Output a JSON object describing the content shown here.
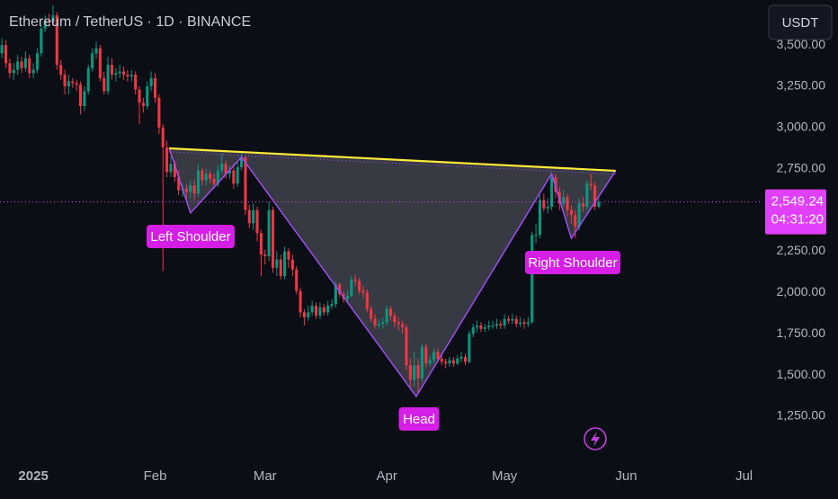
{
  "header": {
    "title": "Ethereum / TetherUS · 1D · BINANCE",
    "currency_button": "USDT"
  },
  "chart_data": {
    "type": "candlestick",
    "up_color": "#089981",
    "down_color": "#f23645",
    "x": [
      -8,
      -7,
      -6,
      -5,
      -4,
      -3,
      -2,
      -1,
      0,
      1,
      2,
      3,
      4,
      5,
      6,
      7,
      8,
      9,
      10,
      11,
      12,
      13,
      14,
      15,
      16,
      17,
      18,
      19,
      20,
      21,
      22,
      23,
      24,
      25,
      26,
      27,
      28,
      29,
      30,
      31,
      32,
      33,
      34,
      35,
      36,
      37,
      38,
      39,
      40,
      41,
      42,
      43,
      44,
      45,
      46,
      47,
      48,
      49,
      50,
      51,
      52,
      53,
      54,
      55,
      56,
      57,
      58,
      59,
      60,
      61,
      62,
      63,
      64,
      65,
      66,
      67,
      68,
      69,
      70,
      71,
      72,
      73,
      74,
      75,
      76,
      77,
      78,
      79,
      80,
      81,
      82,
      83,
      84,
      85,
      86,
      87,
      88,
      89,
      90,
      91,
      92,
      93,
      94,
      95,
      96,
      97,
      98,
      99,
      100,
      101,
      102,
      103,
      104,
      105,
      106,
      107,
      108,
      109,
      110,
      111,
      112,
      113,
      114,
      115,
      116,
      117,
      118,
      119,
      120,
      121,
      122,
      123,
      124,
      125,
      126,
      127,
      128,
      129,
      130,
      131,
      132,
      133,
      134,
      135,
      136,
      137,
      138,
      139,
      140,
      141,
      142,
      143,
      144
    ],
    "open": [
      3450,
      3500,
      3390,
      3330,
      3350,
      3400,
      3360,
      3420,
      3330,
      3350,
      3450,
      3600,
      3650,
      3640,
      3680,
      3380,
      3320,
      3250,
      3280,
      3270,
      3260,
      3130,
      3220,
      3360,
      3450,
      3480,
      3300,
      3220,
      3380,
      3320,
      3330,
      3340,
      3320,
      3310,
      3320,
      3230,
      3150,
      3130,
      3250,
      3300,
      3180,
      3000,
      2880,
      2730,
      2780,
      2700,
      2620,
      2630,
      2610,
      2650,
      2600,
      2740,
      2680,
      2720,
      2690,
      2660,
      2740,
      2780,
      2720,
      2740,
      2660,
      2760,
      2820,
      2500,
      2420,
      2500,
      2360,
      2230,
      2220,
      2500,
      2150,
      2200,
      2100,
      2250,
      2200,
      2140,
      2010,
      1880,
      1850,
      1880,
      1920,
      1860,
      1910,
      1880,
      1920,
      1930,
      2050,
      1990,
      1960,
      1980,
      2080,
      2070,
      2010,
      2000,
      1900,
      1840,
      1800,
      1810,
      1820,
      1900,
      1860,
      1820,
      1810,
      1790,
      1560,
      1470,
      1560,
      1480,
      1670,
      1570,
      1590,
      1640,
      1600,
      1580,
      1570,
      1590,
      1570,
      1600,
      1610,
      1580,
      1750,
      1790,
      1800,
      1780,
      1790,
      1800,
      1800,
      1810,
      1800,
      1840,
      1830,
      1840,
      1810,
      1820,
      1810,
      1820,
      2350,
      2350,
      2560,
      2510,
      2520,
      2700,
      2610,
      2540,
      2580,
      2500,
      2470,
      2400,
      2540,
      2520,
      2660,
      2650,
      2520
    ],
    "high": [
      3540,
      3530,
      3420,
      3390,
      3440,
      3430,
      3460,
      3440,
      3390,
      3480,
      3620,
      3680,
      3690,
      3740,
      3700,
      3410,
      3350,
      3320,
      3300,
      3290,
      3280,
      3250,
      3380,
      3480,
      3520,
      3500,
      3340,
      3430,
      3420,
      3360,
      3380,
      3370,
      3350,
      3350,
      3340,
      3250,
      3180,
      3280,
      3340,
      3330,
      3200,
      3020,
      2920,
      2830,
      2800,
      2740,
      2660,
      2660,
      2680,
      2680,
      2780,
      2760,
      2750,
      2740,
      2720,
      2770,
      2840,
      2800,
      2770,
      2780,
      2790,
      2850,
      2830,
      2530,
      2540,
      2520,
      2380,
      2260,
      2550,
      2520,
      2250,
      2230,
      2280,
      2270,
      2230,
      2160,
      2030,
      1900,
      1920,
      1950,
      1940,
      1940,
      1930,
      1950,
      1960,
      2070,
      2060,
      2010,
      2010,
      2100,
      2110,
      2090,
      2040,
      2020,
      1920,
      1870,
      1840,
      1850,
      1920,
      1920,
      1880,
      1850,
      1830,
      1810,
      1600,
      1640,
      1600,
      1690,
      1690,
      1620,
      1660,
      1660,
      1620,
      1600,
      1610,
      1610,
      1620,
      1640,
      1630,
      1770,
      1810,
      1830,
      1820,
      1810,
      1830,
      1830,
      1840,
      1830,
      1870,
      1860,
      1870,
      1860,
      1850,
      1840,
      1850,
      2370,
      2420,
      2590,
      2600,
      2570,
      2730,
      2720,
      2640,
      2620,
      2600,
      2530,
      2500,
      2570,
      2580,
      2680,
      2720,
      2670,
      2570
    ],
    "low": [
      3420,
      3360,
      3300,
      3290,
      3320,
      3330,
      3340,
      3300,
      3300,
      3330,
      3430,
      3580,
      3610,
      3620,
      3350,
      3290,
      3200,
      3200,
      3240,
      3220,
      3080,
      3100,
      3200,
      3340,
      3420,
      3280,
      3200,
      3200,
      3290,
      3280,
      3300,
      3290,
      3280,
      3280,
      3200,
      3020,
      3090,
      3110,
      3220,
      3150,
      2960,
      2130,
      2700,
      2700,
      2670,
      2590,
      2580,
      2560,
      2570,
      2560,
      2580,
      2650,
      2650,
      2660,
      2630,
      2640,
      2720,
      2690,
      2690,
      2630,
      2640,
      2740,
      2470,
      2390,
      2380,
      2310,
      2100,
      2170,
      2190,
      2120,
      2100,
      2080,
      2080,
      2150,
      2100,
      1990,
      1850,
      1800,
      1830,
      1860,
      1840,
      1840,
      1860,
      1860,
      1900,
      1910,
      1970,
      1940,
      1940,
      1970,
      2040,
      1990,
      1970,
      1880,
      1820,
      1780,
      1780,
      1780,
      1800,
      1830,
      1790,
      1770,
      1750,
      1530,
      1410,
      1430,
      1385,
      1460,
      1540,
      1550,
      1570,
      1580,
      1560,
      1540,
      1550,
      1550,
      1560,
      1580,
      1560,
      1570,
      1730,
      1760,
      1760,
      1760,
      1770,
      1780,
      1780,
      1780,
      1780,
      1810,
      1810,
      1790,
      1790,
      1780,
      1790,
      1810,
      2300,
      2330,
      2490,
      2480,
      2500,
      2570,
      2500,
      2520,
      2460,
      2420,
      2330,
      2380,
      2490,
      2500,
      2620,
      2500,
      2510
    ],
    "close": [
      3500,
      3390,
      3330,
      3350,
      3400,
      3360,
      3420,
      3330,
      3350,
      3450,
      3600,
      3650,
      3640,
      3680,
      3380,
      3320,
      3250,
      3280,
      3270,
      3260,
      3130,
      3220,
      3360,
      3450,
      3480,
      3300,
      3220,
      3380,
      3320,
      3330,
      3340,
      3320,
      3310,
      3320,
      3230,
      3150,
      3130,
      3250,
      3300,
      3180,
      3000,
      2880,
      2730,
      2780,
      2700,
      2620,
      2630,
      2610,
      2650,
      2600,
      2740,
      2680,
      2720,
      2690,
      2660,
      2740,
      2780,
      2720,
      2740,
      2660,
      2760,
      2820,
      2500,
      2420,
      2500,
      2360,
      2230,
      2220,
      2500,
      2150,
      2200,
      2100,
      2250,
      2200,
      2140,
      2010,
      1880,
      1850,
      1880,
      1920,
      1860,
      1910,
      1880,
      1920,
      1930,
      2050,
      1990,
      1960,
      1980,
      2080,
      2070,
      2010,
      2000,
      1900,
      1840,
      1800,
      1810,
      1820,
      1900,
      1860,
      1820,
      1810,
      1790,
      1560,
      1470,
      1560,
      1480,
      1670,
      1570,
      1590,
      1640,
      1600,
      1580,
      1570,
      1590,
      1570,
      1600,
      1610,
      1580,
      1750,
      1790,
      1800,
      1780,
      1790,
      1800,
      1800,
      1810,
      1800,
      1840,
      1830,
      1840,
      1810,
      1820,
      1810,
      1820,
      2350,
      2350,
      2560,
      2510,
      2520,
      2700,
      2610,
      2540,
      2580,
      2500,
      2470,
      2400,
      2540,
      2520,
      2660,
      2650,
      2520,
      2549.24
    ],
    "xlim": [
      -8.5,
      185
    ],
    "xticks": [
      {
        "value": 0,
        "label": "2025"
      },
      {
        "value": 31,
        "label": "Feb"
      },
      {
        "value": 59,
        "label": "Mar"
      },
      {
        "value": 90,
        "label": "Apr"
      },
      {
        "value": 120,
        "label": "May"
      },
      {
        "value": 151,
        "label": "Jun"
      },
      {
        "value": 181,
        "label": "Jul"
      }
    ],
    "ylim": [
      994,
      3773
    ],
    "yticks": [
      {
        "value": 1250,
        "label": "1,250.00"
      },
      {
        "value": 1500,
        "label": "1,500.00"
      },
      {
        "value": 1750,
        "label": "1,750.00"
      },
      {
        "value": 2000,
        "label": "2,000.00"
      },
      {
        "value": 2250,
        "label": "2,250.00"
      },
      {
        "value": 2500,
        "label": "2,500.00"
      },
      {
        "value": 2750,
        "label": "2,750.00"
      },
      {
        "value": 3000,
        "label": "3,000.00"
      },
      {
        "value": 3250,
        "label": "3,250.00"
      },
      {
        "value": 3500,
        "label": "3,500.00"
      }
    ],
    "last_price": {
      "value": 2549.24,
      "label": "2,549.24",
      "color": "#e040fb"
    },
    "countdown": "04:31:20",
    "pattern": {
      "x": [
        34.6,
        40,
        53,
        97.5,
        132,
        137,
        148.3
      ],
      "y": [
        2874,
        2482,
        2820,
        1370,
        2720,
        2329,
        2738
      ],
      "color": "#a64dff",
      "neckline": {
        "x": [
          34.6,
          148.3
        ],
        "y": [
          2874,
          2738
        ],
        "color": "#ffeb3b"
      },
      "labels": [
        "Left Shoulder",
        "Head",
        "Right Shoulder"
      ]
    }
  }
}
